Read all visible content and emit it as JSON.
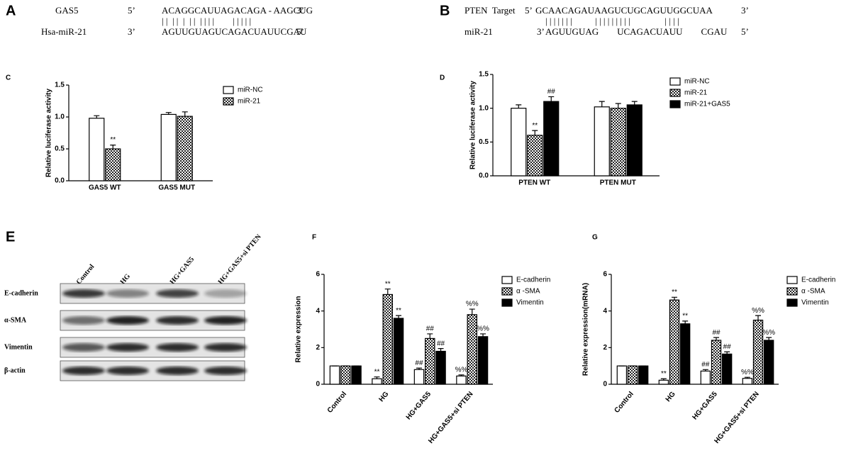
{
  "panels": {
    "A": {
      "label": "A",
      "rows": [
        [
          "GAS5",
          "5’",
          "ACAGGCAUUAGACAGA - AAGCUG",
          "3’"
        ],
        [
          "Hsa-miR-21",
          "3’",
          "AGUUGUAGUCAGACUAUUCGAU",
          "5’"
        ]
      ],
      "pairs": "| |  | |  |  | |  | | | |        | | | | |"
    },
    "B": {
      "label": "B",
      "rows": [
        [
          "PTEN  Target",
          "5’",
          "GCAACAGAUAAGUCUGCAGUUGGCUAA",
          "3’"
        ],
        [
          "miR-21",
          "3’",
          "AGUUGUAG        UCAGACUAUU        CGAU",
          "5’"
        ]
      ],
      "pairs": "| | | | | | |          | | | | | | | | |               | | | |"
    },
    "E": {
      "label": "E",
      "columns": [
        "Control",
        "HG",
        "HG+GAS5",
        "HG+GAS5+si PTEN"
      ],
      "rows": [
        "E-cadherin",
        "α-SMA",
        "Vimentin",
        "β-actin"
      ]
    }
  },
  "chart_data": [
    {
      "type": "bar",
      "panel_label": "C",
      "y_label": "Relative luciferase activity",
      "categories": [
        "GAS5 WT",
        "GAS5 MUT"
      ],
      "ylim": [
        0,
        1.5
      ],
      "yticks": [
        {
          "value": 0,
          "label": "0.0"
        },
        0.5,
        {
          "value": 1,
          "label": "1.0"
        },
        1.5
      ],
      "series": [
        {
          "name": "miR-NC",
          "color": "#ffffff",
          "values": [
            0.98,
            1.04
          ],
          "errors": [
            0.04,
            0.03
          ],
          "marks": [
            null,
            null
          ]
        },
        {
          "name": "miR-21",
          "color": "#888888",
          "pattern": "checker",
          "values": [
            0.5,
            1.01
          ],
          "errors": [
            0.06,
            0.07
          ],
          "marks": [
            "**",
            null
          ]
        }
      ]
    },
    {
      "type": "bar",
      "panel_label": "D",
      "y_label": "Relative luciferase activity",
      "categories": [
        "PTEN WT",
        "PTEN MUT"
      ],
      "ylim": [
        0,
        1.5
      ],
      "yticks": [
        {
          "value": 0,
          "label": "0.0"
        },
        0.5,
        {
          "value": 1,
          "label": "1.0"
        },
        1.5
      ],
      "series": [
        {
          "name": "miR-NC",
          "color": "#ffffff",
          "values": [
            1.0,
            1.02
          ],
          "errors": [
            0.05,
            0.08
          ],
          "marks": [
            null,
            null
          ]
        },
        {
          "name": "miR-21",
          "color": "#888888",
          "pattern": "checker",
          "values": [
            0.6,
            1.0
          ],
          "errors": [
            0.07,
            0.07
          ],
          "marks": [
            "**",
            null
          ]
        },
        {
          "name": "miR-21+GAS5",
          "color": "#000000",
          "values": [
            1.1,
            1.05
          ],
          "errors": [
            0.07,
            0.05
          ],
          "marks": [
            "##",
            null
          ]
        }
      ]
    },
    {
      "type": "bar",
      "panel_label": "F",
      "y_label": "Relative expression",
      "categories": [
        "Control",
        "HG",
        "HG+GAS5",
        "HG+GAS5+si PTEN"
      ],
      "ylim": [
        0,
        6
      ],
      "yticks": [
        0,
        2,
        4,
        6
      ],
      "series": [
        {
          "name": "E-cadherin",
          "color": "#ffffff",
          "values": [
            1,
            0.3,
            0.8,
            0.45
          ],
          "errors": [
            0,
            0.1,
            0.08,
            0.06
          ],
          "marks": [
            null,
            "**",
            "##",
            "%%"
          ]
        },
        {
          "name": "α -SMA",
          "color": "#888888",
          "pattern": "checker",
          "values": [
            1,
            4.9,
            2.5,
            3.8
          ],
          "errors": [
            0,
            0.3,
            0.25,
            0.3
          ],
          "marks": [
            null,
            "**",
            "##",
            "%%"
          ]
        },
        {
          "name": "Vimentin",
          "color": "#000000",
          "values": [
            1,
            3.6,
            1.8,
            2.6
          ],
          "errors": [
            0,
            0.15,
            0.15,
            0.15
          ],
          "marks": [
            null,
            "**",
            "##",
            "%%"
          ]
        }
      ]
    },
    {
      "type": "bar",
      "panel_label": "G",
      "y_label": "Relative expression(mRNA)",
      "categories": [
        "Control",
        "HG",
        "HG+GAS5",
        "HG+GAS5+si PTEN"
      ],
      "ylim": [
        0,
        6
      ],
      "yticks": [
        0,
        2,
        4,
        6
      ],
      "series": [
        {
          "name": "E-cadherin",
          "color": "#ffffff",
          "values": [
            1,
            0.22,
            0.72,
            0.32
          ],
          "errors": [
            0,
            0.08,
            0.08,
            0.06
          ],
          "marks": [
            null,
            "**",
            "##",
            "%%"
          ]
        },
        {
          "name": "α -SMA",
          "color": "#888888",
          "pattern": "checker",
          "values": [
            1,
            4.6,
            2.4,
            3.5
          ],
          "errors": [
            0,
            0.15,
            0.15,
            0.25
          ],
          "marks": [
            null,
            "**",
            "##",
            "%%"
          ]
        },
        {
          "name": "Vimentin",
          "color": "#000000",
          "values": [
            1,
            3.3,
            1.65,
            2.4
          ],
          "errors": [
            0,
            0.15,
            0.12,
            0.15
          ],
          "marks": [
            null,
            "**",
            "##",
            "%%"
          ]
        }
      ]
    }
  ]
}
